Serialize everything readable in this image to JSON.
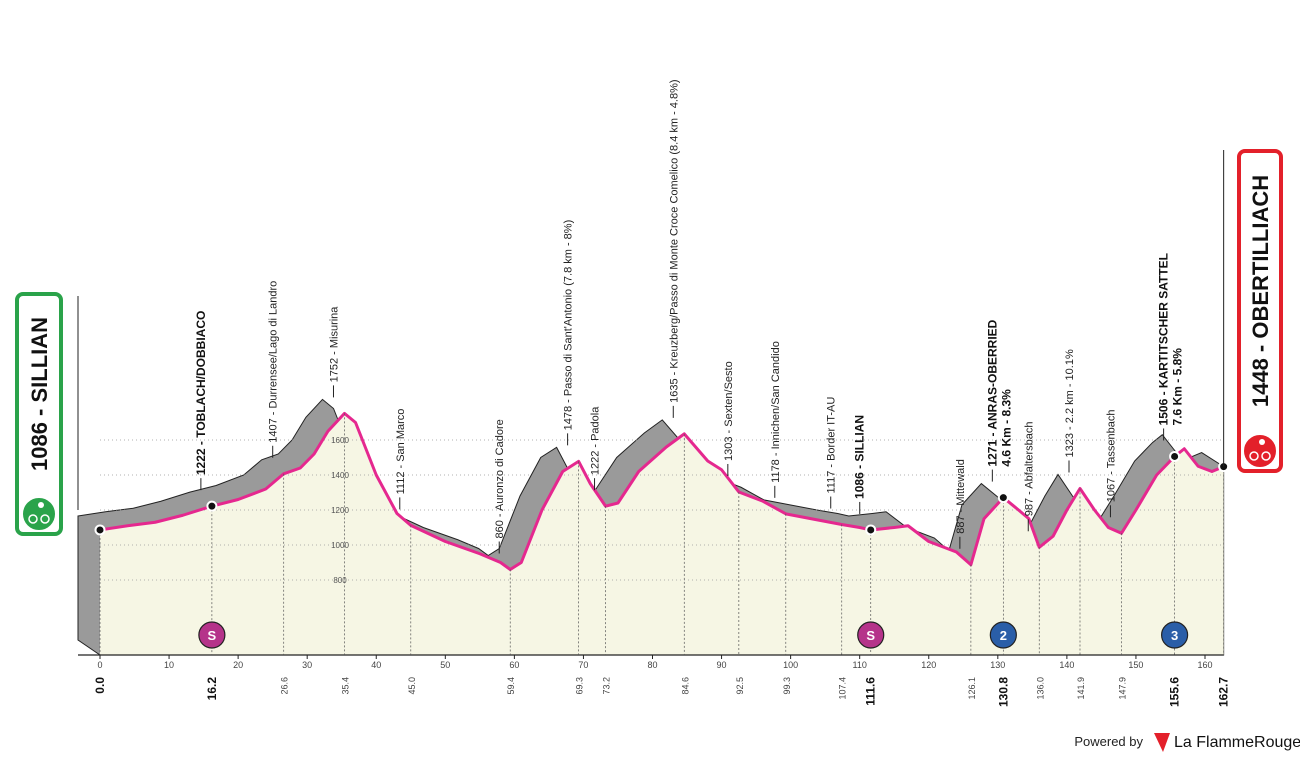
{
  "chart_data": {
    "type": "profile",
    "xlim": [
      0,
      160
    ],
    "xticks": [
      0,
      10,
      20,
      30,
      40,
      50,
      60,
      70,
      80,
      90,
      100,
      110,
      120,
      130,
      140,
      150,
      160
    ],
    "ylim": [
      400,
      1900
    ],
    "yticks": [
      800,
      1000,
      1200,
      1400,
      1600
    ],
    "grid": true,
    "line_color": "#e5288f",
    "shade_color": "#9a9a9a",
    "fill_color": "#f6f6e4",
    "start": {
      "label": "1086 - SILLIAN",
      "color": "#2aa34a"
    },
    "finish": {
      "label": "1448 - OBERTILLIACH",
      "color": "#e3202a"
    },
    "profile": {
      "km": [
        0,
        4,
        8,
        12,
        16.2,
        20,
        24,
        26.6,
        29,
        31,
        33,
        35.4,
        37,
        40,
        43,
        45,
        50,
        55,
        58,
        59.4,
        61,
        64,
        67,
        69.3,
        71,
        73.2,
        75,
        78,
        82,
        84.6,
        88,
        90,
        92.5,
        96,
        99.3,
        103,
        107.4,
        110,
        111.6,
        115,
        117,
        120,
        124,
        126.1,
        128,
        130.8,
        133,
        134.5,
        136,
        138,
        140,
        141.9,
        144,
        146,
        147.9,
        150,
        153,
        155.6,
        157,
        159,
        161,
        162.7
      ],
      "altitude": [
        1086,
        1110,
        1130,
        1170,
        1222,
        1260,
        1320,
        1407,
        1440,
        1520,
        1650,
        1752,
        1700,
        1400,
        1180,
        1112,
        1020,
        950,
        900,
        860,
        900,
        1200,
        1420,
        1478,
        1350,
        1222,
        1240,
        1420,
        1560,
        1635,
        1480,
        1430,
        1303,
        1250,
        1178,
        1150,
        1117,
        1100,
        1086,
        1100,
        1110,
        1020,
        960,
        887,
        1150,
        1271,
        1200,
        1150,
        987,
        1050,
        1200,
        1323,
        1200,
        1100,
        1067,
        1200,
        1400,
        1506,
        1550,
        1450,
        1420,
        1448
      ]
    },
    "waypoints": [
      {
        "km": {
          "value": 0,
          "label": "0.0"
        },
        "altitude": 1086,
        "bold": true
      },
      {
        "km": 16.2,
        "altitude": 1222,
        "label": "1222 - TOBLACH/DOBBIACO",
        "bold": true,
        "badge": "S",
        "badge_color": "#b5338a"
      },
      {
        "km": 26.6,
        "altitude": 1407,
        "label": "1407 - Durrensee/Lago di Landro"
      },
      {
        "km": 35.4,
        "altitude": 1752,
        "label": "1752 - Misurina"
      },
      {
        "km": {
          "value": 45,
          "label": "45.0"
        },
        "altitude": 1112,
        "label": "1112 - San Marco"
      },
      {
        "km": 59.4,
        "altitude": 860,
        "label": "860 - Auronzo di Cadore"
      },
      {
        "km": 69.3,
        "altitude": 1478,
        "label": "1478 - Passo di Sant'Antonio (7.8 km - 8%)"
      },
      {
        "km": 73.2,
        "altitude": 1222,
        "label": "1222 - Padola"
      },
      {
        "km": 84.6,
        "altitude": 1635,
        "label": "1635 - Kreuzberg/Passo di Monte Croce Comelico (8.4 km - 4.8%)"
      },
      {
        "km": 92.5,
        "altitude": 1303,
        "label": "1303 - Sexten/Sesto"
      },
      {
        "km": 99.3,
        "altitude": 1178,
        "label": "1178 - Innichen/San Candido"
      },
      {
        "km": 107.4,
        "altitude": 1117,
        "label": "1117 - Border IT-AU"
      },
      {
        "km": 111.6,
        "altitude": 1086,
        "label": "1086 - SILLIAN",
        "bold": true,
        "badge": "S",
        "badge_color": "#b5338a"
      },
      {
        "km": 126.1,
        "altitude": 887,
        "label": "887 - Mittewald"
      },
      {
        "km": 130.8,
        "altitude": 1271,
        "label": "1271 - ANRAS-OBERRIED",
        "detail": "4.6 Km - 8.3%",
        "bold": true,
        "badge": "2",
        "badge_color": "#2a5ea8"
      },
      {
        "km": {
          "value": 136,
          "label": "136.0"
        },
        "altitude": 987,
        "label": "987 - Abfaltersbach"
      },
      {
        "km": 141.9,
        "altitude": 1323,
        "label": "1323 - 2.2 km - 10.1%"
      },
      {
        "km": 147.9,
        "altitude": 1067,
        "label": "1067 - Tassenbach"
      },
      {
        "km": 155.6,
        "altitude": 1506,
        "label": "1506 - KARTITSCHER SATTEL",
        "detail": "7.6 Km - 5.8%",
        "bold": true,
        "badge": "3",
        "badge_color": "#2a5ea8"
      },
      {
        "km": 162.7,
        "altitude": 1448,
        "bold": true
      }
    ],
    "footer": {
      "powered": "Powered by",
      "brand": "La FlammeRouge"
    }
  }
}
